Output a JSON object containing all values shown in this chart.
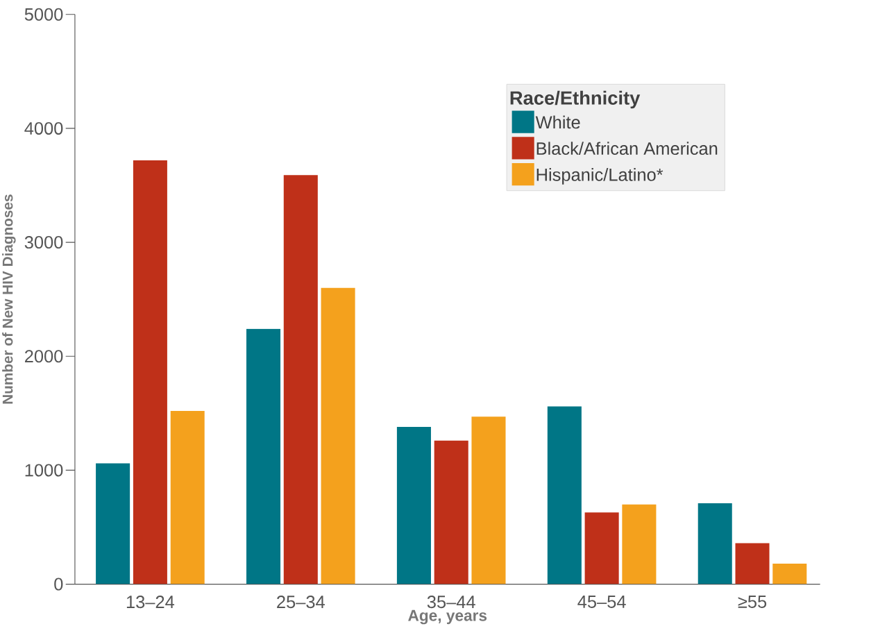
{
  "chart_data": {
    "type": "bar",
    "xlabel": "Age, years",
    "ylabel": "Number of New HIV Diagnoses",
    "legend_title": "Race/Ethnicity",
    "legend": "top right",
    "grid": false,
    "categories": [
      "13–24",
      "25–34",
      "35–44",
      "45–54",
      "≥55"
    ],
    "series": [
      {
        "name": "White",
        "color": "#007686",
        "values": [
          1060,
          2240,
          1380,
          1560,
          710
        ]
      },
      {
        "name": "Black/African American",
        "color": "#bf3019",
        "values": [
          3720,
          3590,
          1260,
          630,
          360
        ]
      },
      {
        "name": "Hispanic/Latino*",
        "color": "#f4a11d",
        "values": [
          1520,
          2600,
          1470,
          700,
          180
        ]
      }
    ],
    "ylim": [
      0,
      5000
    ],
    "yticks": [
      0,
      1000,
      2000,
      3000,
      4000,
      5000
    ]
  }
}
